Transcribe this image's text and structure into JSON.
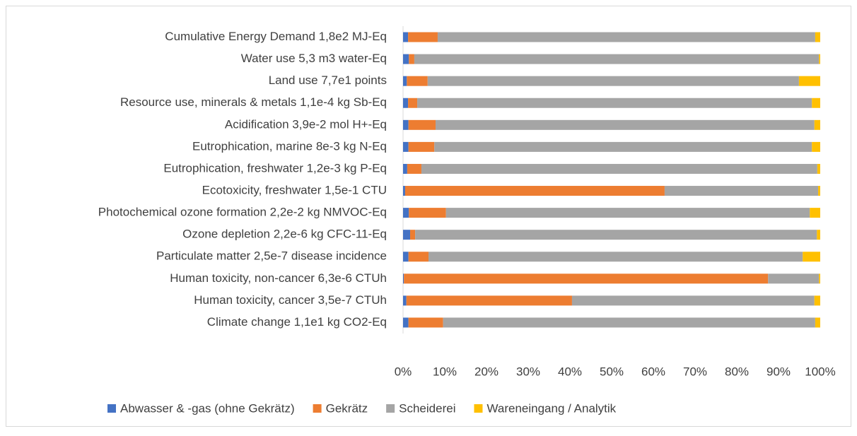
{
  "chart_data": {
    "type": "stacked_bar_horizontal",
    "categories": [
      "Cumulative Energy Demand 1,8e2 MJ-Eq",
      "Water use 5,3 m3 water-Eq",
      "Land use 7,7e1 points",
      "Resource use, minerals & metals 1,1e-4 kg Sb-Eq",
      "Acidification 3,9e-2 mol H+-Eq",
      "Eutrophication, marine 8e-3 kg N-Eq",
      "Eutrophication, freshwater 1,2e-3 kg P-Eq",
      "Ecotoxicity, freshwater 1,5e-1 CTU",
      "Photochemical ozone formation 2,2e-2 kg NMVOC-Eq",
      "Ozone depletion 2,2e-6 kg CFC-11-Eq",
      "Particulate matter 2,5e-7 disease incidence",
      "Human toxicity, non-cancer 6,3e-6 CTUh",
      "Human toxicity, cancer 3,5e-7 CTUh",
      "Climate change 1,1e1 kg CO2-Eq"
    ],
    "series": [
      {
        "name": "Abwasser & -gas (ohne Gekrätz)",
        "color": "#4472c4",
        "values": [
          1.2,
          1.4,
          0.9,
          1.2,
          1.3,
          1.3,
          1.0,
          0.5,
          1.4,
          1.7,
          1.3,
          0.2,
          0.8,
          1.3
        ]
      },
      {
        "name": "Gekrätz",
        "color": "#ed7d31",
        "values": [
          7.1,
          1.3,
          5.0,
          2.2,
          6.5,
          6.2,
          3.4,
          62.2,
          8.9,
          1.2,
          4.8,
          87.3,
          39.7,
          8.3
        ]
      },
      {
        "name": "Scheiderei",
        "color": "#a5a5a5",
        "values": [
          90.5,
          97.0,
          89.0,
          94.6,
          90.8,
          90.5,
          94.9,
          36.8,
          87.2,
          96.3,
          89.7,
          12.2,
          58.1,
          89.2
        ]
      },
      {
        "name": "Wareneingang / Analytik",
        "color": "#ffc000",
        "values": [
          1.2,
          0.3,
          5.1,
          2.0,
          1.4,
          2.0,
          0.7,
          0.5,
          2.5,
          0.8,
          4.2,
          0.3,
          1.4,
          1.2
        ]
      }
    ],
    "xlim": [
      0,
      100
    ],
    "xticks": [
      {
        "value": 0,
        "label": "0%"
      },
      {
        "value": 10,
        "label": "10%"
      },
      {
        "value": 20,
        "label": "20%"
      },
      {
        "value": 30,
        "label": "30%"
      },
      {
        "value": 40,
        "label": "40%"
      },
      {
        "value": 50,
        "label": "50%"
      },
      {
        "value": 60,
        "label": "60%"
      },
      {
        "value": 70,
        "label": "70%"
      },
      {
        "value": 80,
        "label": "80%"
      },
      {
        "value": 90,
        "label": "90%"
      },
      {
        "value": 100,
        "label": "100%"
      }
    ],
    "legend": "bottom"
  }
}
